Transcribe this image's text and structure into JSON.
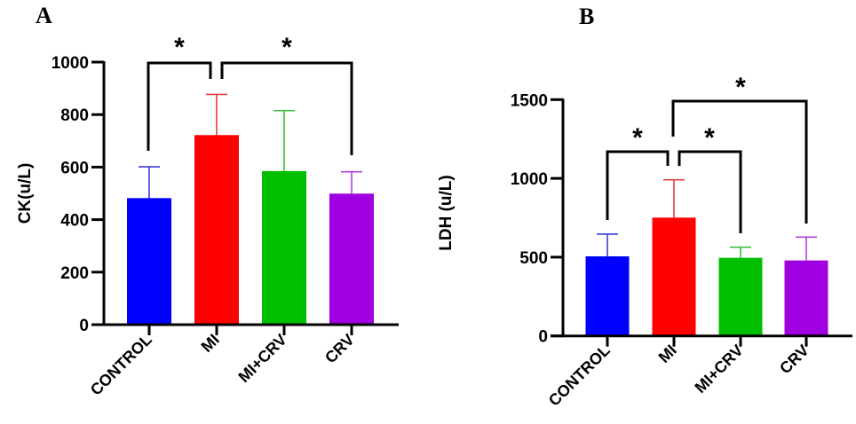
{
  "chart_data": [
    {
      "panel": "A",
      "type": "bar",
      "title": "",
      "xlabel": "",
      "ylabel": "CK(u/L)",
      "ylim": [
        0,
        1000
      ],
      "yticks": [
        0,
        200,
        400,
        600,
        800,
        1000
      ],
      "categories": [
        "CONTROL",
        "MI",
        "MI+CRV",
        "CRV"
      ],
      "colors": [
        "#0000ff",
        "#ff0000",
        "#00bf00",
        "#a000e0"
      ],
      "errorbar_colors": [
        "#3a3adf",
        "#e04040",
        "#3cbf3c",
        "#b040e0"
      ],
      "values": [
        482,
        722,
        585,
        499
      ],
      "error_upper": [
        601,
        877,
        815,
        582
      ],
      "significance": [
        {
          "from": "CONTROL",
          "to": "MI",
          "label": "*"
        },
        {
          "from": "MI",
          "to": "CRV",
          "label": "*"
        }
      ],
      "grid": false
    },
    {
      "panel": "B",
      "type": "bar",
      "title": "",
      "xlabel": "",
      "ylabel": "LDH (u/L)",
      "ylim": [
        0,
        1500
      ],
      "yticks": [
        0,
        500,
        1000,
        1500
      ],
      "categories": [
        "CONTROL",
        "MI",
        "MI+CRV",
        "CRV"
      ],
      "colors": [
        "#0000ff",
        "#ff0000",
        "#00bf00",
        "#a000e0"
      ],
      "errorbar_colors": [
        "#3a3adf",
        "#e04040",
        "#3cbf3c",
        "#b040e0"
      ],
      "values": [
        505,
        751,
        496,
        479
      ],
      "error_upper": [
        646,
        991,
        563,
        627
      ],
      "significance": [
        {
          "from": "CONTROL",
          "to": "MI",
          "label": "*"
        },
        {
          "from": "MI",
          "to": "MI+CRV",
          "label": "*"
        },
        {
          "from": "MI",
          "to": "CRV",
          "label": "*"
        }
      ],
      "grid": false
    }
  ]
}
